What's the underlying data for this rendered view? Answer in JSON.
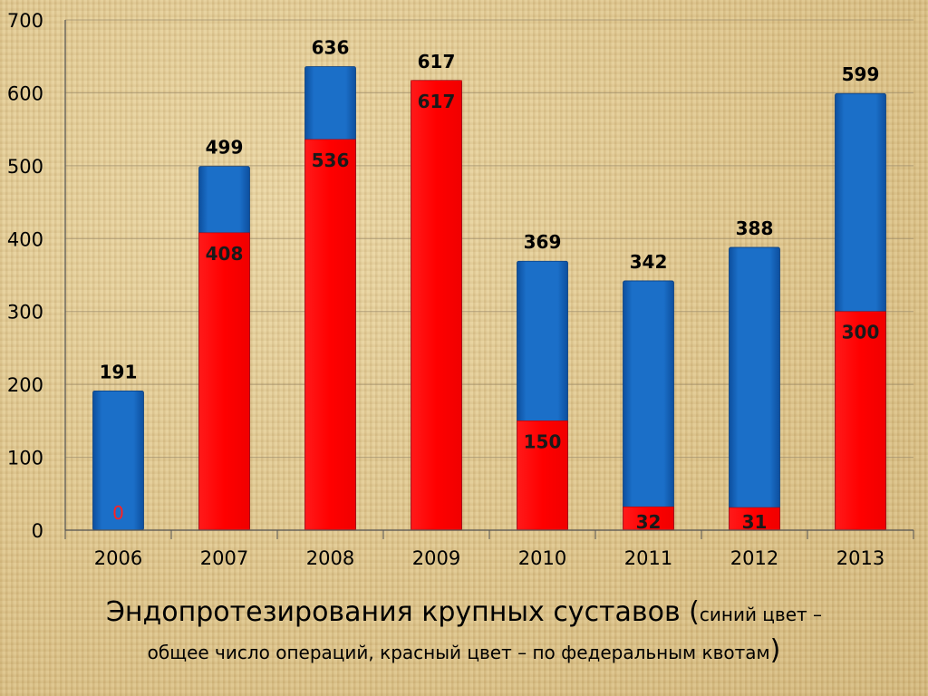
{
  "chart_data": {
    "type": "bar",
    "stacked": true,
    "categories": [
      "2006",
      "2007",
      "2008",
      "2009",
      "2010",
      "2011",
      "2012",
      "2013"
    ],
    "totals": [
      191,
      499,
      636,
      617,
      369,
      342,
      388,
      599
    ],
    "federal_quota": [
      0,
      408,
      536,
      617,
      150,
      32,
      31,
      300
    ],
    "total_labels": [
      "191",
      "499",
      "636",
      "617",
      "369",
      "342",
      "388",
      "599"
    ],
    "federal_labels": [
      "0",
      "408",
      "536",
      "617",
      "150",
      "32",
      "31",
      "300"
    ],
    "ylim": [
      0,
      700
    ],
    "yticks": [
      0,
      100,
      200,
      300,
      400,
      500,
      600,
      700
    ],
    "grid": true,
    "colors": {
      "total": "#1b6fc8",
      "federal": "#ff0000",
      "grid": "#9a8a6a",
      "axis": "#555555"
    }
  },
  "caption": {
    "line1_main": "Эндопротезирования крупных суставов (",
    "line1_small": "синий цвет –",
    "line2_small": "общее число операций, красный цвет – по федеральным  квотам",
    "line2_paren": ")"
  }
}
